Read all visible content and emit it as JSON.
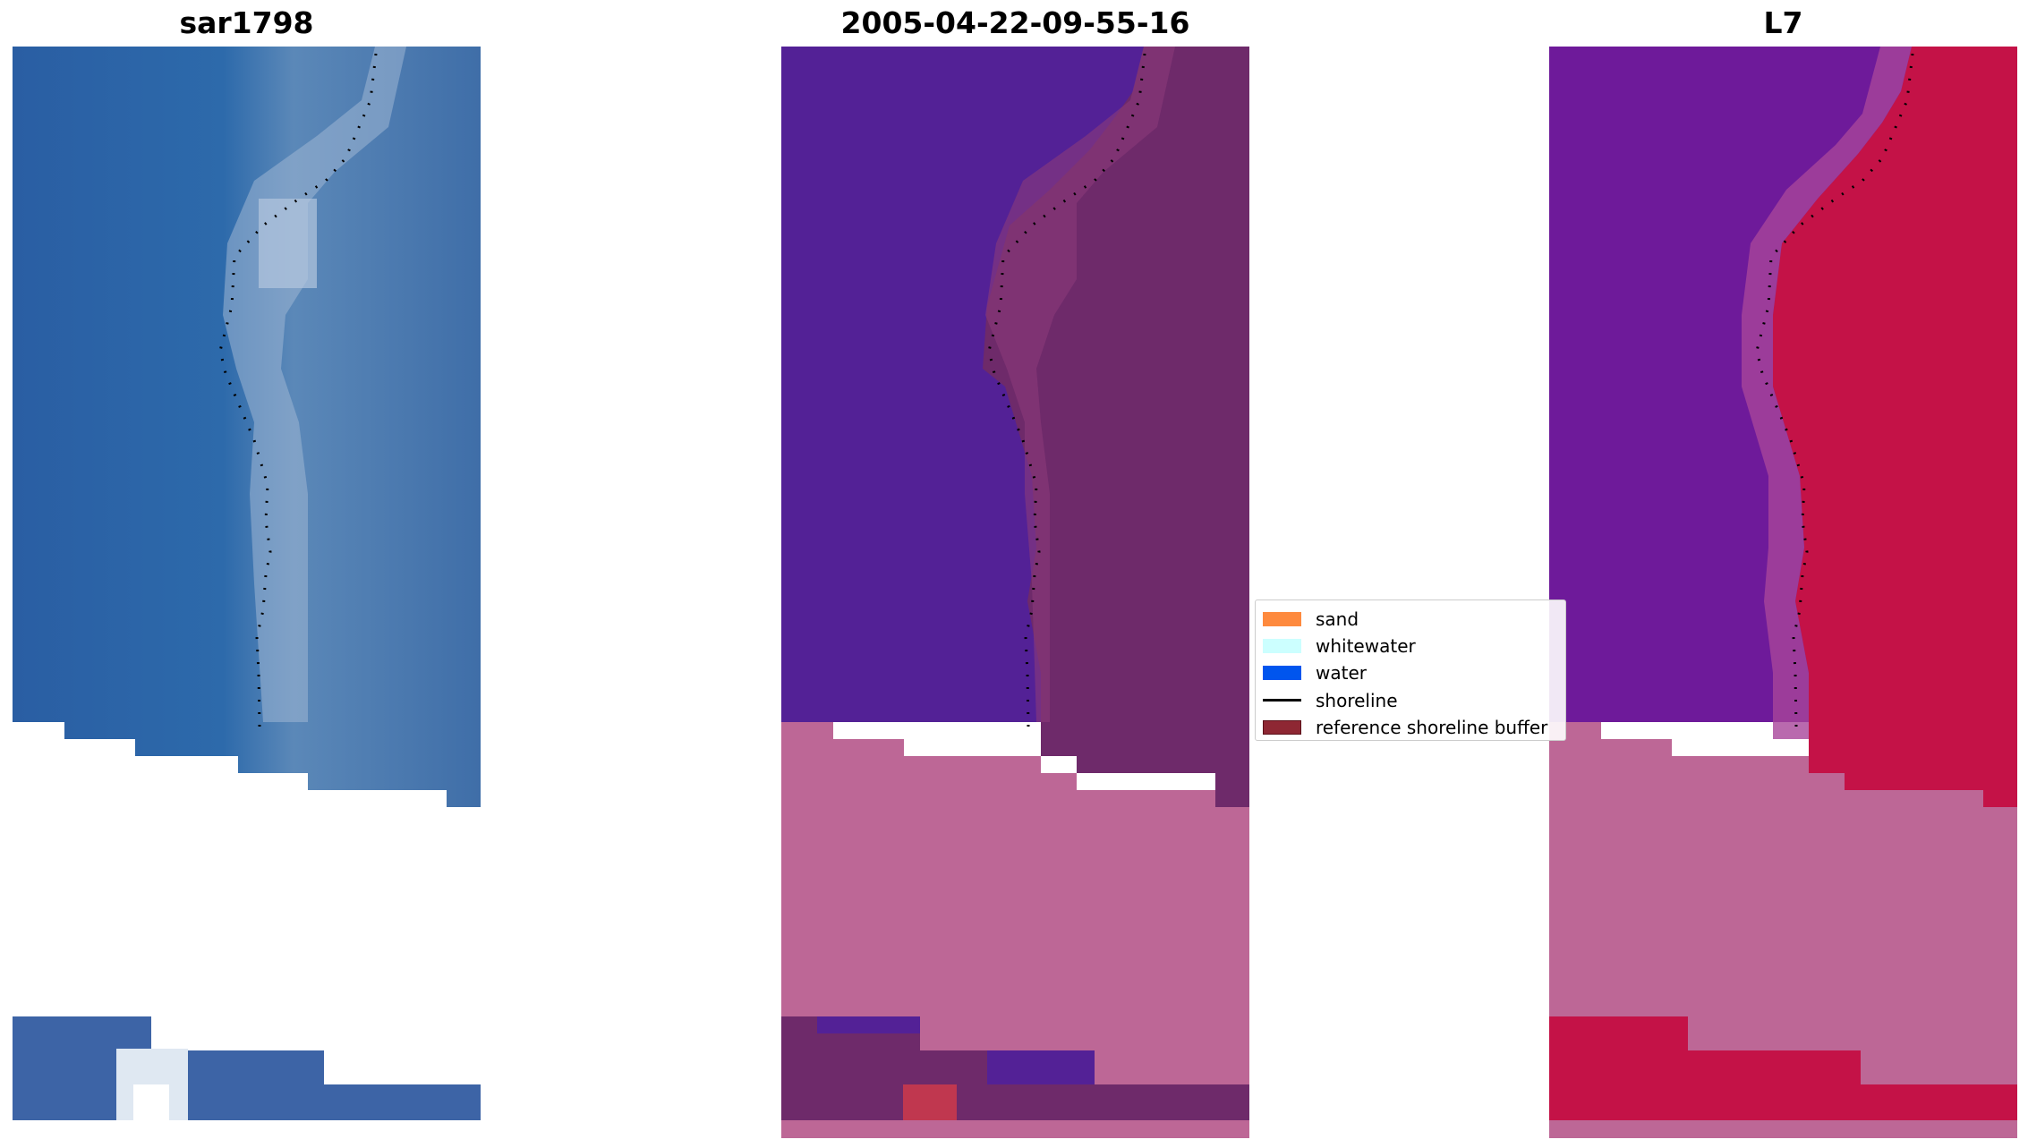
{
  "panels": [
    {
      "title": "sar1798"
    },
    {
      "title": "2005-04-22-09-55-16"
    },
    {
      "title": "L7"
    }
  ],
  "legend": [
    {
      "label": "sand",
      "color": "#fe8a3e",
      "style": "patch"
    },
    {
      "label": "whitewater",
      "color": "#ccffff",
      "style": "patch"
    },
    {
      "label": "water",
      "color": "#0055ee",
      "style": "patch"
    },
    {
      "label": "shoreline",
      "color": "#000000",
      "style": "line"
    },
    {
      "label": "reference shoreline buffer",
      "color": "#8e2733",
      "style": "patch"
    }
  ]
}
